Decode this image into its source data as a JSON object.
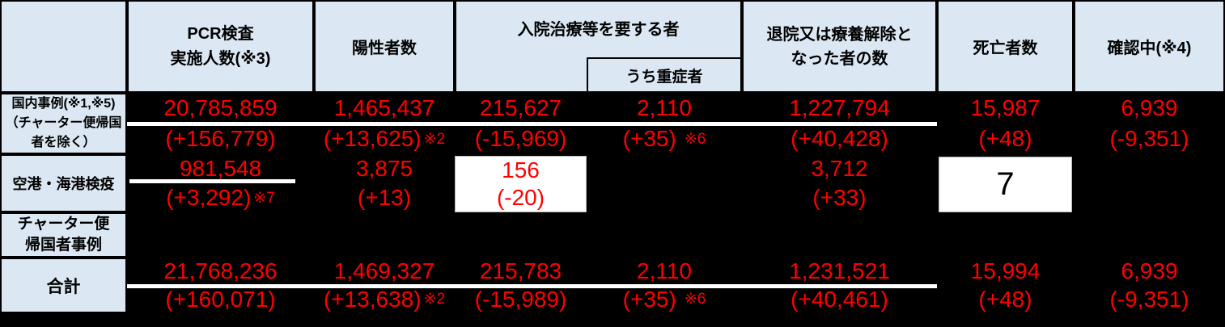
{
  "colors": {
    "background": "#000000",
    "header_bg": "#dbe7f3",
    "value_red": "#ff0000",
    "highlight_bg": "#ffffff",
    "border_black": "#000000"
  },
  "header": {
    "pcr_l1": "PCR検査",
    "pcr_l2": "実施人数(※3)",
    "positive": "陽性者数",
    "hospitalized": "入院治療等を要する者",
    "severe": "うち重症者",
    "discharged_l1": "退院又は療養解除と",
    "discharged_l2": "なった者の数",
    "deaths": "死亡者数",
    "confirming": "確認中(※4)"
  },
  "rows": {
    "domestic": {
      "label_l1": "国内事例(※1,※5)",
      "label_l2": "（チャーター便帰国",
      "label_l3": "者を除く）",
      "pcr_v": "20,785,859",
      "pcr_d": "(+156,779)",
      "pos_v": "1,465,437",
      "pos_d": "(+13,625)",
      "pos_note": "※2",
      "hosp_v": "215,627",
      "hosp_d": "(-15,969)",
      "sev_v": "2,110",
      "sev_d": "(+35)",
      "sev_note": "※6",
      "dis_v": "1,227,794",
      "dis_d": "(+40,428)",
      "death_v": "15,987",
      "death_d": "(+48)",
      "conf_v": "6,939",
      "conf_d": "(-9,351)"
    },
    "quarantine": {
      "label": "空港・海港検疫",
      "pcr_v": "981,548",
      "pcr_d": "(+3,292)",
      "pcr_note": "※7",
      "pos_v": "3,875",
      "pos_d": "(+13)",
      "hosp_v": "156",
      "hosp_d": "(-20)",
      "dis_v": "3,712",
      "dis_d": "(+33)",
      "death_v": "7"
    },
    "charter": {
      "label_l1": "チャーター便",
      "label_l2": "帰国者事例"
    },
    "total": {
      "label": "合計",
      "pcr_v": "21,768,236",
      "pcr_d": "(+160,071)",
      "pos_v": "1,469,327",
      "pos_d": "(+13,638)",
      "pos_note": "※2",
      "hosp_v": "215,783",
      "hosp_d": "(-15,989)",
      "sev_v": "2,110",
      "sev_d": "(+35)",
      "sev_note": "※6",
      "dis_v": "1,231,521",
      "dis_d": "(+40,461)",
      "death_v": "15,994",
      "death_d": "(+48)",
      "conf_v": "6,939",
      "conf_d": "(-9,351)"
    }
  },
  "chart_data": {
    "type": "table",
    "columns": [
      "",
      "PCR検査実施人数(※3)",
      "陽性者数",
      "入院治療等を要する者",
      "うち重症者",
      "退院又は療養解除となった者の数",
      "死亡者数",
      "確認中(※4)"
    ],
    "rows": [
      [
        "国内事例(※1,※5)（チャーター便帰国者を除く）",
        "20,785,859 (+156,779)",
        "1,465,437 (+13,625)※2",
        "215,627 (-15,969)",
        "2,110 (+35) ※6",
        "1,227,794 (+40,428)",
        "15,987 (+48)",
        "6,939 (-9,351)"
      ],
      [
        "空港・海港検疫",
        "981,548 (+3,292)※7",
        "3,875 (+13)",
        "156 (-20)",
        "",
        "3,712 (+33)",
        "7",
        ""
      ],
      [
        "チャーター便帰国者事例",
        "",
        "",
        "",
        "",
        "",
        "",
        ""
      ],
      [
        "合計",
        "21,768,236 (+160,071)",
        "1,469,327 (+13,638)※2",
        "215,783 (-15,989)",
        "2,110 (+35) ※6",
        "1,231,521 (+40,461)",
        "15,994 (+48)",
        "6,939 (-9,351)"
      ]
    ]
  }
}
